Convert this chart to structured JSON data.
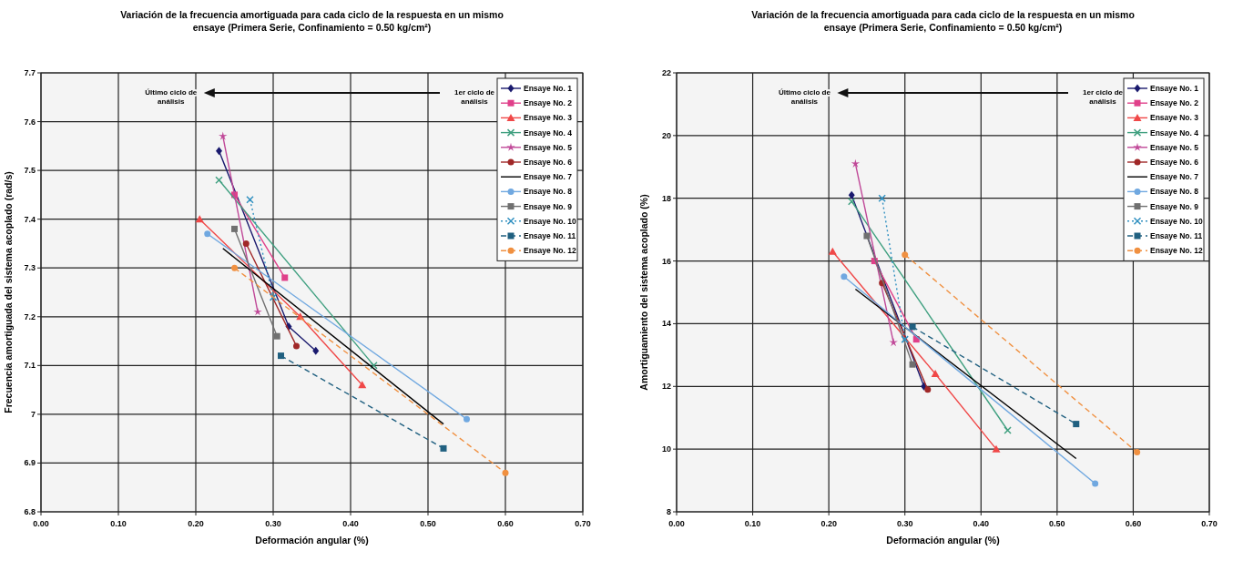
{
  "chart_data": [
    {
      "type": "line",
      "title": "Variación de la frecuencia amortiguada para cada ciclo de la respuesta en un mismo ensaye (Primera Serie, Confinamiento = 0.50 kg/cm²)",
      "xlabel": "Deformación angular (%)",
      "ylabel": "Frecuencia amortiguada del sistema acoplado (rad/s)",
      "xlim": [
        0,
        0.7
      ],
      "ylim": [
        6.8,
        7.7
      ],
      "xticks": [
        {
          "value": 0,
          "label": "0.00"
        },
        {
          "value": 0.1,
          "label": "0.10"
        },
        {
          "value": 0.2,
          "label": "0.20"
        },
        {
          "value": 0.3,
          "label": "0.30"
        },
        {
          "value": 0.4,
          "label": "0.40"
        },
        {
          "value": 0.5,
          "label": "0.50"
        },
        {
          "value": 0.6,
          "label": "0.60"
        },
        {
          "value": 0.7,
          "label": "0.70"
        }
      ],
      "yticks": [
        6.8,
        6.9,
        7,
        7.1,
        7.2,
        7.3,
        7.4,
        7.5,
        7.6,
        7.7
      ],
      "grid": true,
      "legend": "top right",
      "annotations": [
        "Último ciclo de análisis",
        "1er ciclo de análisis"
      ],
      "series": [
        {
          "name": "Ensaye No. 1",
          "color": "#1a1a6e",
          "marker": "diamond",
          "line_style": "solid",
          "x": [
            0.23,
            0.32,
            0.355
          ],
          "values": [
            7.54,
            7.18,
            7.13
          ]
        },
        {
          "name": "Ensaye No. 2",
          "color": "#e0408a",
          "marker": "square",
          "line_style": "solid",
          "x": [
            0.25,
            0.315
          ],
          "values": [
            7.45,
            7.28
          ]
        },
        {
          "name": "Ensaye No. 3",
          "color": "#f04848",
          "marker": "triangle",
          "line_style": "solid",
          "x": [
            0.205,
            0.335,
            0.415
          ],
          "values": [
            7.4,
            7.2,
            7.06
          ]
        },
        {
          "name": "Ensaye No. 4",
          "color": "#40a080",
          "marker": "cross",
          "line_style": "solid",
          "x": [
            0.23,
            0.43
          ],
          "values": [
            7.48,
            7.1
          ]
        },
        {
          "name": "Ensaye No. 5",
          "color": "#c04898",
          "marker": "star",
          "line_style": "solid",
          "x": [
            0.235,
            0.28
          ],
          "values": [
            7.57,
            7.21
          ]
        },
        {
          "name": "Ensaye No. 6",
          "color": "#a02828",
          "marker": "circle",
          "line_style": "solid",
          "x": [
            0.265,
            0.33
          ],
          "values": [
            7.35,
            7.14
          ]
        },
        {
          "name": "Ensaye No. 7",
          "color": "#000000",
          "marker": "none",
          "line_style": "solid",
          "x": [
            0.235,
            0.52
          ],
          "values": [
            7.34,
            6.98
          ]
        },
        {
          "name": "Ensaye No. 8",
          "color": "#70a8e0",
          "marker": "circle",
          "line_style": "solid",
          "x": [
            0.215,
            0.55
          ],
          "values": [
            7.37,
            6.99
          ]
        },
        {
          "name": "Ensaye No. 9",
          "color": "#707070",
          "marker": "square",
          "line_style": "solid",
          "x": [
            0.25,
            0.305
          ],
          "values": [
            7.38,
            7.16
          ]
        },
        {
          "name": "Ensaye No. 10",
          "color": "#3090c0",
          "marker": "cross",
          "line_style": "dotted",
          "x": [
            0.27,
            0.3
          ],
          "values": [
            7.44,
            7.24
          ]
        },
        {
          "name": "Ensaye No. 11",
          "color": "#206080",
          "marker": "square",
          "line_style": "dashed",
          "x": [
            0.31,
            0.52
          ],
          "values": [
            7.12,
            6.93
          ]
        },
        {
          "name": "Ensaye No. 12",
          "color": "#f09040",
          "marker": "circle",
          "line_style": "dashed",
          "x": [
            0.25,
            0.6
          ],
          "values": [
            7.3,
            6.88
          ]
        }
      ]
    },
    {
      "type": "line",
      "title": "Variación de la frecuencia amortiguada para cada ciclo de la respuesta en un mismo ensaye (Primera Serie, Confinamiento = 0.50 kg/cm²)",
      "xlabel": "Deformación angular (%)",
      "ylabel": "Amortiguamiento del sistema acoplado (%)",
      "xlim": [
        0,
        0.7
      ],
      "ylim": [
        8,
        22
      ],
      "xticks": [
        {
          "value": 0,
          "label": "0.00"
        },
        {
          "value": 0.1,
          "label": "0.10"
        },
        {
          "value": 0.2,
          "label": "0.20"
        },
        {
          "value": 0.3,
          "label": "0.30"
        },
        {
          "value": 0.4,
          "label": "0.40"
        },
        {
          "value": 0.5,
          "label": "0.50"
        },
        {
          "value": 0.6,
          "label": "0.60"
        },
        {
          "value": 0.7,
          "label": "0.70"
        }
      ],
      "yticks": [
        8,
        10,
        12,
        14,
        16,
        18,
        20,
        22
      ],
      "grid": true,
      "legend": "top right",
      "annotations": [
        "Último ciclo de análisis",
        "1er ciclo de análisis"
      ],
      "series": [
        {
          "name": "Ensaye No. 1",
          "color": "#1a1a6e",
          "marker": "diamond",
          "line_style": "solid",
          "x": [
            0.23,
            0.325
          ],
          "values": [
            18.1,
            12
          ]
        },
        {
          "name": "Ensaye No. 2",
          "color": "#e0408a",
          "marker": "square",
          "line_style": "solid",
          "x": [
            0.26,
            0.315
          ],
          "values": [
            16,
            13.5
          ]
        },
        {
          "name": "Ensaye No. 3",
          "color": "#f04848",
          "marker": "triangle",
          "line_style": "solid",
          "x": [
            0.205,
            0.34,
            0.42
          ],
          "values": [
            16.3,
            12.4,
            10
          ]
        },
        {
          "name": "Ensaye No. 4",
          "color": "#40a080",
          "marker": "cross",
          "line_style": "solid",
          "x": [
            0.23,
            0.435
          ],
          "values": [
            17.9,
            10.6
          ]
        },
        {
          "name": "Ensaye No. 5",
          "color": "#c04898",
          "marker": "star",
          "line_style": "solid",
          "x": [
            0.235,
            0.285
          ],
          "values": [
            19.1,
            13.4
          ]
        },
        {
          "name": "Ensaye No. 6",
          "color": "#a02828",
          "marker": "circle",
          "line_style": "solid",
          "x": [
            0.27,
            0.33
          ],
          "values": [
            15.3,
            11.9
          ]
        },
        {
          "name": "Ensaye No. 7",
          "color": "#000000",
          "marker": "none",
          "line_style": "solid",
          "x": [
            0.235,
            0.525
          ],
          "values": [
            15.1,
            9.7
          ]
        },
        {
          "name": "Ensaye No. 8",
          "color": "#70a8e0",
          "marker": "circle",
          "line_style": "solid",
          "x": [
            0.22,
            0.55
          ],
          "values": [
            15.5,
            8.9
          ]
        },
        {
          "name": "Ensaye No. 9",
          "color": "#707070",
          "marker": "square",
          "line_style": "solid",
          "x": [
            0.25,
            0.31
          ],
          "values": [
            16.8,
            12.7
          ]
        },
        {
          "name": "Ensaye No. 10",
          "color": "#3090c0",
          "marker": "cross",
          "line_style": "dotted",
          "x": [
            0.27,
            0.3
          ],
          "values": [
            18,
            13.5
          ]
        },
        {
          "name": "Ensaye No. 11",
          "color": "#206080",
          "marker": "square",
          "line_style": "dashed",
          "x": [
            0.31,
            0.525
          ],
          "values": [
            13.9,
            10.8
          ]
        },
        {
          "name": "Ensaye No. 12",
          "color": "#f09040",
          "marker": "circle",
          "line_style": "dashed",
          "x": [
            0.3,
            0.605
          ],
          "values": [
            16.2,
            9.9
          ]
        }
      ]
    }
  ]
}
